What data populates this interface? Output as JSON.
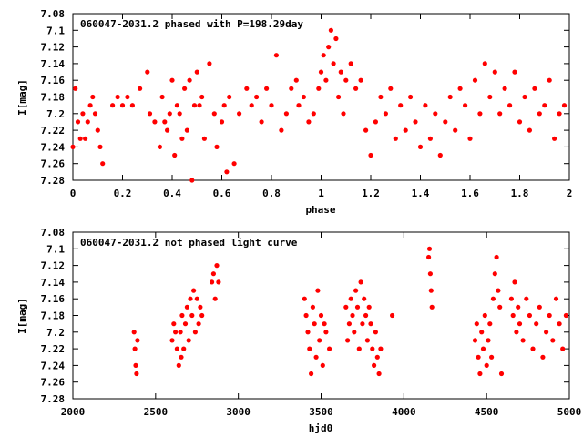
{
  "chart_data": [
    {
      "type": "scatter",
      "title": "060047-2031.2 phased with P=198.29day",
      "xlabel": "phase",
      "ylabel": "I[mag]",
      "xlim": [
        0,
        2
      ],
      "ylim": [
        7.08,
        7.28
      ],
      "y_inverted": true,
      "xticks": [
        "0",
        "0.2",
        "0.4",
        "0.6",
        "0.8",
        "1",
        "1.2",
        "1.4",
        "1.6",
        "1.8",
        "2"
      ],
      "yticks": [
        "7.08",
        "7.1",
        "7.12",
        "7.14",
        "7.16",
        "7.18",
        "7.2",
        "7.22",
        "7.24",
        "7.26",
        "7.28"
      ],
      "grid": false,
      "marker_color": "#ff0000",
      "series": [
        {
          "x": [
            0.0,
            0.01,
            0.02,
            0.03,
            0.04,
            0.05,
            0.06,
            0.07,
            0.08,
            0.09,
            0.1,
            0.11,
            0.12,
            0.16,
            0.18,
            0.2,
            0.22,
            0.24,
            0.27,
            0.3,
            0.31,
            0.33,
            0.35,
            0.36,
            0.37,
            0.38,
            0.39,
            0.4,
            0.41,
            0.42,
            0.43,
            0.44,
            0.45,
            0.46,
            0.47,
            0.48,
            0.49,
            0.5,
            0.51,
            0.52,
            0.53,
            0.55,
            0.57,
            0.58,
            0.6,
            0.61,
            0.62,
            0.63,
            0.65,
            0.67,
            0.7,
            0.72,
            0.74,
            0.76,
            0.78,
            0.8,
            0.82,
            0.84,
            0.86,
            0.88,
            0.9,
            0.91,
            0.93,
            0.95,
            0.97,
            0.99,
            1.0,
            1.01,
            1.02,
            1.03,
            1.04,
            1.05,
            1.06,
            1.07,
            1.08,
            1.09,
            1.1,
            1.12,
            1.14,
            1.16,
            1.18,
            1.2,
            1.22,
            1.24,
            1.26,
            1.28,
            1.3,
            1.32,
            1.34,
            1.36,
            1.38,
            1.4,
            1.42,
            1.44,
            1.46,
            1.48,
            1.5,
            1.52,
            1.54,
            1.56,
            1.58,
            1.6,
            1.62,
            1.64,
            1.66,
            1.68,
            1.7,
            1.72,
            1.74,
            1.76,
            1.78,
            1.8,
            1.82,
            1.84,
            1.86,
            1.88,
            1.9,
            1.92,
            1.94,
            1.96,
            1.98
          ],
          "y": [
            7.24,
            7.17,
            7.21,
            7.23,
            7.2,
            7.23,
            7.21,
            7.19,
            7.18,
            7.2,
            7.22,
            7.24,
            7.26,
            7.19,
            7.18,
            7.19,
            7.18,
            7.19,
            7.17,
            7.15,
            7.2,
            7.21,
            7.24,
            7.18,
            7.21,
            7.22,
            7.2,
            7.16,
            7.25,
            7.19,
            7.2,
            7.23,
            7.17,
            7.22,
            7.16,
            7.28,
            7.19,
            7.15,
            7.19,
            7.18,
            7.23,
            7.14,
            7.2,
            7.24,
            7.21,
            7.19,
            7.27,
            7.18,
            7.26,
            7.2,
            7.17,
            7.19,
            7.18,
            7.21,
            7.17,
            7.19,
            7.13,
            7.22,
            7.2,
            7.17,
            7.16,
            7.19,
            7.18,
            7.21,
            7.2,
            7.17,
            7.15,
            7.13,
            7.16,
            7.12,
            7.1,
            7.14,
            7.11,
            7.18,
            7.15,
            7.2,
            7.16,
            7.14,
            7.17,
            7.16,
            7.22,
            7.25,
            7.21,
            7.18,
            7.2,
            7.17,
            7.23,
            7.19,
            7.22,
            7.18,
            7.21,
            7.24,
            7.19,
            7.23,
            7.2,
            7.25,
            7.21,
            7.18,
            7.22,
            7.17,
            7.19,
            7.23,
            7.16,
            7.2,
            7.14,
            7.18,
            7.15,
            7.2,
            7.17,
            7.19,
            7.15,
            7.21,
            7.18,
            7.22,
            7.17,
            7.2,
            7.19,
            7.16,
            7.23,
            7.2,
            7.19
          ]
        }
      ]
    },
    {
      "type": "scatter",
      "title": "060047-2031.2 not phased light curve",
      "xlabel": "hjd0",
      "ylabel": "I[mag]",
      "xlim": [
        2000,
        5000
      ],
      "ylim": [
        7.08,
        7.28
      ],
      "y_inverted": true,
      "xticks": [
        "2000",
        "2500",
        "3000",
        "3500",
        "4000",
        "4500",
        "5000"
      ],
      "yticks": [
        "7.08",
        "7.1",
        "7.12",
        "7.14",
        "7.16",
        "7.18",
        "7.2",
        "7.22",
        "7.24",
        "7.26",
        "7.28"
      ],
      "grid": false,
      "marker_color": "#ff0000",
      "series": [
        {
          "x": [
            2370,
            2375,
            2380,
            2385,
            2390,
            2600,
            2610,
            2620,
            2630,
            2640,
            2650,
            2655,
            2660,
            2670,
            2680,
            2690,
            2700,
            2710,
            2720,
            2730,
            2740,
            2750,
            2760,
            2770,
            2780,
            2840,
            2850,
            2860,
            2870,
            2880,
            3400,
            3410,
            3420,
            3430,
            3440,
            3450,
            3460,
            3470,
            3480,
            3490,
            3500,
            3510,
            3520,
            3530,
            3550,
            3650,
            3660,
            3670,
            3680,
            3690,
            3700,
            3710,
            3720,
            3730,
            3740,
            3750,
            3760,
            3770,
            3780,
            3790,
            3800,
            3810,
            3820,
            3830,
            3840,
            3850,
            3860,
            3930,
            4150,
            4155,
            4160,
            4165,
            4170,
            4430,
            4440,
            4450,
            4460,
            4470,
            4480,
            4490,
            4500,
            4510,
            4520,
            4530,
            4540,
            4550,
            4560,
            4570,
            4580,
            4590,
            4650,
            4660,
            4670,
            4680,
            4690,
            4700,
            4720,
            4740,
            4760,
            4780,
            4800,
            4820,
            4840,
            4860,
            4880,
            4900,
            4920,
            4940,
            4960,
            4980
          ],
          "y": [
            7.2,
            7.22,
            7.24,
            7.25,
            7.21,
            7.21,
            7.19,
            7.2,
            7.22,
            7.24,
            7.2,
            7.23,
            7.18,
            7.22,
            7.19,
            7.17,
            7.21,
            7.16,
            7.18,
            7.15,
            7.2,
            7.16,
            7.19,
            7.17,
            7.18,
            7.14,
            7.13,
            7.16,
            7.12,
            7.14,
            7.16,
            7.18,
            7.2,
            7.22,
            7.25,
            7.17,
            7.19,
            7.23,
            7.15,
            7.21,
            7.18,
            7.24,
            7.19,
            7.2,
            7.22,
            7.17,
            7.21,
            7.19,
            7.16,
            7.18,
            7.2,
            7.15,
            7.17,
            7.22,
            7.14,
            7.19,
            7.16,
            7.18,
            7.21,
            7.17,
            7.19,
            7.22,
            7.24,
            7.2,
            7.23,
            7.25,
            7.22,
            7.18,
            7.11,
            7.1,
            7.13,
            7.15,
            7.17,
            7.21,
            7.19,
            7.23,
            7.25,
            7.2,
            7.22,
            7.18,
            7.24,
            7.21,
            7.19,
            7.23,
            7.16,
            7.13,
            7.11,
            7.15,
            7.17,
            7.25,
            7.16,
            7.18,
            7.14,
            7.2,
            7.17,
            7.19,
            7.21,
            7.16,
            7.18,
            7.22,
            7.19,
            7.17,
            7.23,
            7.2,
            7.18,
            7.21,
            7.16,
            7.19,
            7.22,
            7.18
          ]
        }
      ]
    }
  ]
}
